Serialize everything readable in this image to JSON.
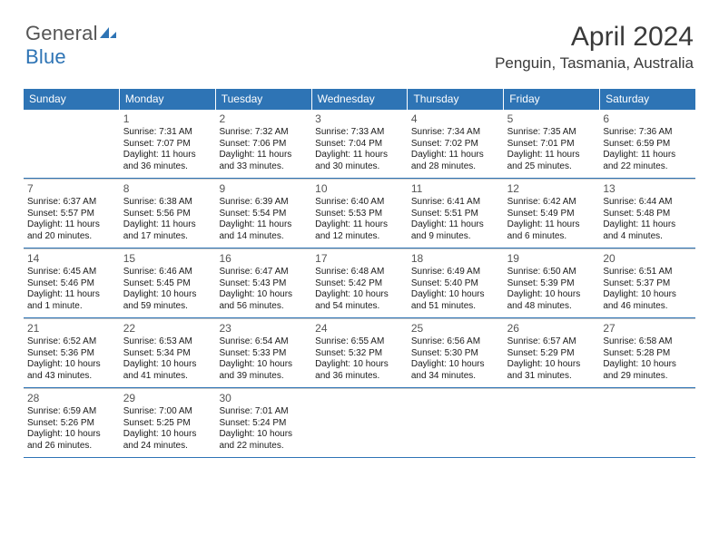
{
  "brand": {
    "name1": "General",
    "name2": "Blue"
  },
  "title": "April 2024",
  "location": "Penguin, Tasmania, Australia",
  "colors": {
    "header_bg": "#2e74b5",
    "header_text": "#ffffff",
    "rule": "#2e74b5",
    "cell_border": "#c9c9c9",
    "text": "#1a1a1a",
    "daynum": "#555555",
    "logo_gray": "#555555",
    "logo_blue": "#2e74b5",
    "background": "#ffffff"
  },
  "day_names": [
    "Sunday",
    "Monday",
    "Tuesday",
    "Wednesday",
    "Thursday",
    "Friday",
    "Saturday"
  ],
  "weeks": [
    [
      {
        "n": "",
        "sr": "",
        "ss": "",
        "dl": "",
        "empty": true
      },
      {
        "n": "1",
        "sr": "Sunrise: 7:31 AM",
        "ss": "Sunset: 7:07 PM",
        "dl": "Daylight: 11 hours and 36 minutes."
      },
      {
        "n": "2",
        "sr": "Sunrise: 7:32 AM",
        "ss": "Sunset: 7:06 PM",
        "dl": "Daylight: 11 hours and 33 minutes."
      },
      {
        "n": "3",
        "sr": "Sunrise: 7:33 AM",
        "ss": "Sunset: 7:04 PM",
        "dl": "Daylight: 11 hours and 30 minutes."
      },
      {
        "n": "4",
        "sr": "Sunrise: 7:34 AM",
        "ss": "Sunset: 7:02 PM",
        "dl": "Daylight: 11 hours and 28 minutes."
      },
      {
        "n": "5",
        "sr": "Sunrise: 7:35 AM",
        "ss": "Sunset: 7:01 PM",
        "dl": "Daylight: 11 hours and 25 minutes."
      },
      {
        "n": "6",
        "sr": "Sunrise: 7:36 AM",
        "ss": "Sunset: 6:59 PM",
        "dl": "Daylight: 11 hours and 22 minutes."
      }
    ],
    [
      {
        "n": "7",
        "sr": "Sunrise: 6:37 AM",
        "ss": "Sunset: 5:57 PM",
        "dl": "Daylight: 11 hours and 20 minutes."
      },
      {
        "n": "8",
        "sr": "Sunrise: 6:38 AM",
        "ss": "Sunset: 5:56 PM",
        "dl": "Daylight: 11 hours and 17 minutes."
      },
      {
        "n": "9",
        "sr": "Sunrise: 6:39 AM",
        "ss": "Sunset: 5:54 PM",
        "dl": "Daylight: 11 hours and 14 minutes."
      },
      {
        "n": "10",
        "sr": "Sunrise: 6:40 AM",
        "ss": "Sunset: 5:53 PM",
        "dl": "Daylight: 11 hours and 12 minutes."
      },
      {
        "n": "11",
        "sr": "Sunrise: 6:41 AM",
        "ss": "Sunset: 5:51 PM",
        "dl": "Daylight: 11 hours and 9 minutes."
      },
      {
        "n": "12",
        "sr": "Sunrise: 6:42 AM",
        "ss": "Sunset: 5:49 PM",
        "dl": "Daylight: 11 hours and 6 minutes."
      },
      {
        "n": "13",
        "sr": "Sunrise: 6:44 AM",
        "ss": "Sunset: 5:48 PM",
        "dl": "Daylight: 11 hours and 4 minutes."
      }
    ],
    [
      {
        "n": "14",
        "sr": "Sunrise: 6:45 AM",
        "ss": "Sunset: 5:46 PM",
        "dl": "Daylight: 11 hours and 1 minute."
      },
      {
        "n": "15",
        "sr": "Sunrise: 6:46 AM",
        "ss": "Sunset: 5:45 PM",
        "dl": "Daylight: 10 hours and 59 minutes."
      },
      {
        "n": "16",
        "sr": "Sunrise: 6:47 AM",
        "ss": "Sunset: 5:43 PM",
        "dl": "Daylight: 10 hours and 56 minutes."
      },
      {
        "n": "17",
        "sr": "Sunrise: 6:48 AM",
        "ss": "Sunset: 5:42 PM",
        "dl": "Daylight: 10 hours and 54 minutes."
      },
      {
        "n": "18",
        "sr": "Sunrise: 6:49 AM",
        "ss": "Sunset: 5:40 PM",
        "dl": "Daylight: 10 hours and 51 minutes."
      },
      {
        "n": "19",
        "sr": "Sunrise: 6:50 AM",
        "ss": "Sunset: 5:39 PM",
        "dl": "Daylight: 10 hours and 48 minutes."
      },
      {
        "n": "20",
        "sr": "Sunrise: 6:51 AM",
        "ss": "Sunset: 5:37 PM",
        "dl": "Daylight: 10 hours and 46 minutes."
      }
    ],
    [
      {
        "n": "21",
        "sr": "Sunrise: 6:52 AM",
        "ss": "Sunset: 5:36 PM",
        "dl": "Daylight: 10 hours and 43 minutes."
      },
      {
        "n": "22",
        "sr": "Sunrise: 6:53 AM",
        "ss": "Sunset: 5:34 PM",
        "dl": "Daylight: 10 hours and 41 minutes."
      },
      {
        "n": "23",
        "sr": "Sunrise: 6:54 AM",
        "ss": "Sunset: 5:33 PM",
        "dl": "Daylight: 10 hours and 39 minutes."
      },
      {
        "n": "24",
        "sr": "Sunrise: 6:55 AM",
        "ss": "Sunset: 5:32 PM",
        "dl": "Daylight: 10 hours and 36 minutes."
      },
      {
        "n": "25",
        "sr": "Sunrise: 6:56 AM",
        "ss": "Sunset: 5:30 PM",
        "dl": "Daylight: 10 hours and 34 minutes."
      },
      {
        "n": "26",
        "sr": "Sunrise: 6:57 AM",
        "ss": "Sunset: 5:29 PM",
        "dl": "Daylight: 10 hours and 31 minutes."
      },
      {
        "n": "27",
        "sr": "Sunrise: 6:58 AM",
        "ss": "Sunset: 5:28 PM",
        "dl": "Daylight: 10 hours and 29 minutes."
      }
    ],
    [
      {
        "n": "28",
        "sr": "Sunrise: 6:59 AM",
        "ss": "Sunset: 5:26 PM",
        "dl": "Daylight: 10 hours and 26 minutes."
      },
      {
        "n": "29",
        "sr": "Sunrise: 7:00 AM",
        "ss": "Sunset: 5:25 PM",
        "dl": "Daylight: 10 hours and 24 minutes."
      },
      {
        "n": "30",
        "sr": "Sunrise: 7:01 AM",
        "ss": "Sunset: 5:24 PM",
        "dl": "Daylight: 10 hours and 22 minutes."
      },
      {
        "n": "",
        "sr": "",
        "ss": "",
        "dl": "",
        "empty": true
      },
      {
        "n": "",
        "sr": "",
        "ss": "",
        "dl": "",
        "empty": true
      },
      {
        "n": "",
        "sr": "",
        "ss": "",
        "dl": "",
        "empty": true
      },
      {
        "n": "",
        "sr": "",
        "ss": "",
        "dl": "",
        "empty": true
      }
    ]
  ]
}
